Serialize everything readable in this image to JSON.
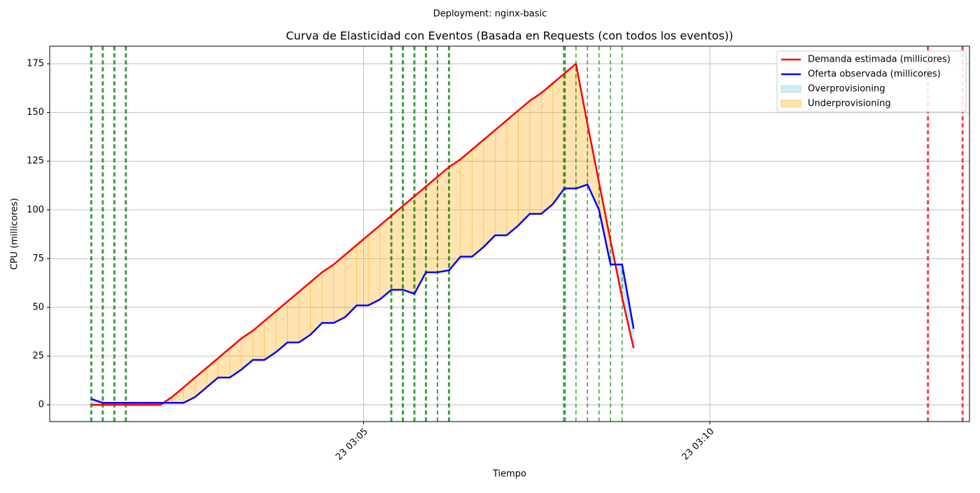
{
  "chart_data": {
    "type": "line",
    "suptitle": "Deployment: nginx-basic",
    "title": "Curva de Elasticidad con Eventos (Basada en Requests (con todos los eventos))",
    "xlabel": "Tiempo",
    "ylabel": "CPU (millicores)",
    "x": [
      "03:01:04",
      "03:01:14",
      "03:01:24",
      "03:01:34",
      "03:01:44",
      "03:01:54",
      "03:02:04",
      "03:02:14",
      "03:02:24",
      "03:02:34",
      "03:02:44",
      "03:02:54",
      "03:03:04",
      "03:03:14",
      "03:03:24",
      "03:03:34",
      "03:03:44",
      "03:03:54",
      "03:04:04",
      "03:04:14",
      "03:04:24",
      "03:04:34",
      "03:04:44",
      "03:04:54",
      "03:05:04",
      "03:05:14",
      "03:05:24",
      "03:05:34",
      "03:05:44",
      "03:05:54",
      "03:06:04",
      "03:06:14",
      "03:06:24",
      "03:06:34",
      "03:06:44",
      "03:06:54",
      "03:07:04",
      "03:07:14",
      "03:07:24",
      "03:07:34",
      "03:07:44",
      "03:07:54",
      "03:08:04",
      "03:08:14",
      "03:08:24",
      "03:08:34",
      "03:08:44",
      "03:08:54"
    ],
    "series": [
      {
        "name": "Demanda estimada (millicores)",
        "color": "#ff0000",
        "values": [
          0,
          0,
          0,
          0,
          0,
          0,
          0,
          4,
          9,
          14,
          19,
          24,
          29,
          34,
          38,
          43,
          48,
          53,
          58,
          63,
          68,
          72,
          77,
          82,
          87,
          92,
          97,
          102,
          107,
          112,
          117,
          122,
          126,
          131,
          136,
          141,
          146,
          151,
          156,
          160,
          165,
          170,
          175,
          144,
          114,
          84,
          55,
          29
        ]
      },
      {
        "name": "Oferta observada (millicores)",
        "color": "#0000ff",
        "values": [
          3,
          1,
          1,
          1,
          1,
          1,
          1,
          1,
          1,
          4,
          9,
          14,
          14,
          18,
          23,
          23,
          27,
          32,
          32,
          36,
          42,
          42,
          45,
          51,
          51,
          54,
          59,
          59,
          57,
          68,
          68,
          69,
          76,
          76,
          81,
          87,
          87,
          92,
          98,
          98,
          103,
          111,
          111,
          113,
          100,
          72,
          72,
          39
        ]
      }
    ],
    "fills": [
      {
        "name": "Overprovisioning",
        "color": "#87ceeb"
      },
      {
        "name": "Underprovisioning",
        "color": "#ffa500"
      }
    ],
    "events": [
      {
        "x": "03:01:04",
        "color": "#008000",
        "linewidth": 3
      },
      {
        "x": "03:01:14",
        "color": "#008000",
        "linewidth": 3
      },
      {
        "x": "03:01:24",
        "color": "#008000",
        "linewidth": 3
      },
      {
        "x": "03:01:34",
        "color": "#008000",
        "linewidth": 3
      },
      {
        "x": "03:05:24",
        "color": "#008000",
        "linewidth": 3
      },
      {
        "x": "03:05:34",
        "color": "#008000",
        "linewidth": 3
      },
      {
        "x": "03:05:44",
        "color": "#008000",
        "linewidth": 3
      },
      {
        "x": "03:05:54",
        "color": "#008000",
        "linewidth": 3
      },
      {
        "x": "03:06:04",
        "color": "#008000",
        "linewidth": 2
      },
      {
        "x": "03:06:14",
        "color": "#008000",
        "linewidth": 3
      },
      {
        "x": "03:07:54",
        "color": "#008000",
        "linewidth": 4
      },
      {
        "x": "03:08:04",
        "color": "#008000",
        "linewidth": 1.5
      },
      {
        "x": "03:08:14",
        "color": "#008000",
        "linewidth": 1.5
      },
      {
        "x": "03:08:24",
        "color": "#008000",
        "linewidth": 1.5
      },
      {
        "x": "03:08:34",
        "color": "#008000",
        "linewidth": 1.5
      },
      {
        "x": "03:08:44",
        "color": "#008000",
        "linewidth": 1.5
      },
      {
        "x": "03:13:09",
        "color": "#ff0000",
        "linewidth": 3
      },
      {
        "x": "03:13:39",
        "color": "#ff0000",
        "linewidth": 3
      }
    ],
    "xlim": [
      "03:00:28",
      "03:13:45"
    ],
    "xticks": [
      {
        "value": "03:05:00",
        "label": "23 03:05"
      },
      {
        "value": "03:10:00",
        "label": "23 03:10"
      }
    ],
    "ylim": [
      -8.6,
      184
    ],
    "yticks": [
      0,
      25,
      50,
      75,
      100,
      125,
      150,
      175
    ],
    "grid": true,
    "legend": "upper right"
  }
}
